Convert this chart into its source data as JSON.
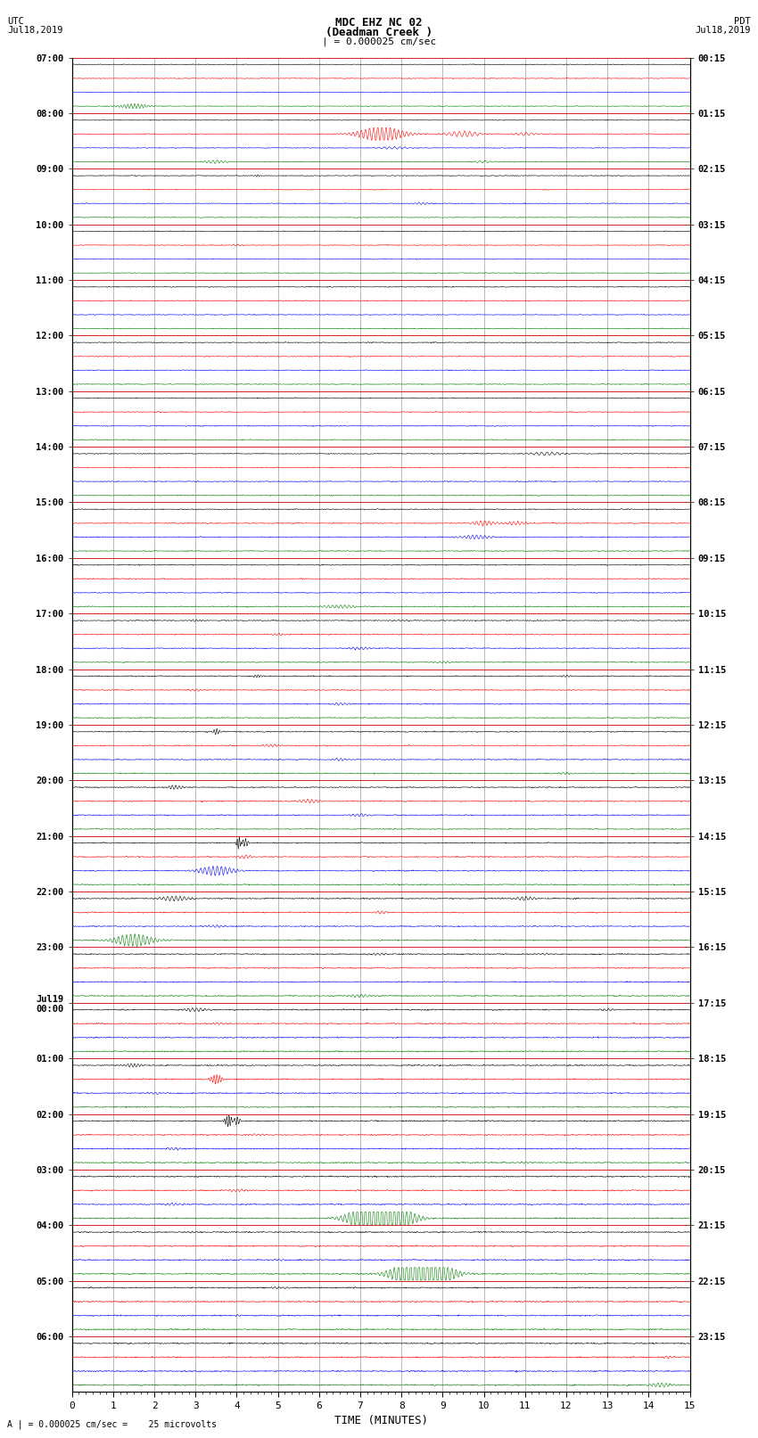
{
  "title_line1": "MDC EHZ NC 02",
  "title_line2": "(Deadman Creek )",
  "title_line3": "| = 0.000025 cm/sec",
  "left_header_line1": "UTC",
  "left_header_line2": "Jul18,2019",
  "right_header_line1": "PDT",
  "right_header_line2": "Jul18,2019",
  "xlabel": "TIME (MINUTES)",
  "footer": "A | = 0.000025 cm/sec =    25 microvolts",
  "utc_labels": [
    "07:00",
    "08:00",
    "09:00",
    "10:00",
    "11:00",
    "12:00",
    "13:00",
    "14:00",
    "15:00",
    "16:00",
    "17:00",
    "18:00",
    "19:00",
    "20:00",
    "21:00",
    "22:00",
    "23:00",
    "Jul19\n00:00",
    "01:00",
    "02:00",
    "03:00",
    "04:00",
    "05:00",
    "06:00"
  ],
  "pdt_labels": [
    "00:15",
    "01:15",
    "02:15",
    "03:15",
    "04:15",
    "05:15",
    "06:15",
    "07:15",
    "08:15",
    "09:15",
    "10:15",
    "11:15",
    "12:15",
    "13:15",
    "14:15",
    "15:15",
    "16:15",
    "17:15",
    "18:15",
    "19:15",
    "20:15",
    "21:15",
    "22:15",
    "23:15"
  ],
  "n_hours": 24,
  "traces_per_hour": 4,
  "colors": [
    "black",
    "red",
    "blue",
    "green"
  ],
  "bg_color": "white",
  "grid_color": "#aaaaaa",
  "hour_line_color": "#cc0000",
  "xmin": 0,
  "xmax": 15,
  "noise_base": 0.012,
  "seed": 12345
}
